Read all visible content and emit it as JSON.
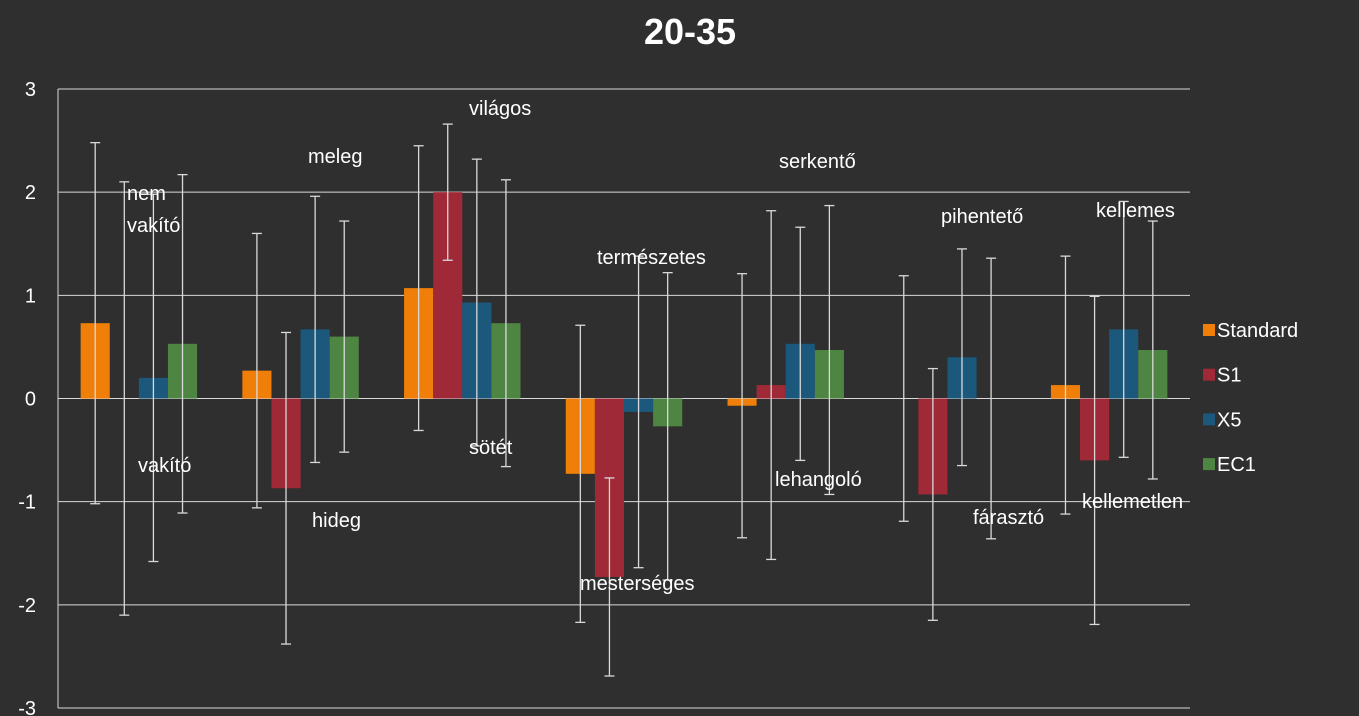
{
  "chart_data": {
    "type": "bar",
    "title": "20-35",
    "categories": [
      null,
      null,
      null,
      null,
      null,
      null,
      null
    ],
    "series": [
      {
        "name": "Standard",
        "color": "#f07f09",
        "values": [
          0.73,
          0.27,
          1.07,
          -0.73,
          -0.07,
          0,
          0.13
        ],
        "errors": [
          1.75,
          1.33,
          1.38,
          1.44,
          1.28,
          1.19,
          1.25
        ]
      },
      {
        "name": "S1",
        "color": "#9f2936",
        "values": [
          0,
          -0.87,
          2.0,
          -1.73,
          0.13,
          -0.93,
          -0.6
        ],
        "errors": [
          2.1,
          1.51,
          0.66,
          0.96,
          1.69,
          1.22,
          1.59
        ]
      },
      {
        "name": "X5",
        "color": "#1b587c",
        "values": [
          0.2,
          0.67,
          0.93,
          -0.13,
          0.53,
          0.4,
          0.67
        ],
        "errors": [
          1.78,
          1.29,
          1.39,
          1.51,
          1.13,
          1.05,
          1.24
        ]
      },
      {
        "name": "EC1",
        "color": "#4e8542",
        "values": [
          0.53,
          0.6,
          0.73,
          -0.27,
          0.47,
          0,
          0.47
        ],
        "errors": [
          1.64,
          1.12,
          1.39,
          1.49,
          1.4,
          1.36,
          1.25
        ]
      }
    ],
    "ylim": [
      -3,
      3
    ],
    "yticks": [
      -3,
      -2,
      -1,
      0,
      1,
      2,
      3
    ],
    "grid": true,
    "legend": "right",
    "annotations": [
      "nem vakító",
      "vakító",
      "meleg",
      "hideg",
      "világos",
      "sötét",
      "mesterséges",
      "természetes",
      "serkentő",
      "lehangoló",
      "pihentető",
      "fárasztó",
      "kellemes",
      "kellemetlen"
    ]
  }
}
